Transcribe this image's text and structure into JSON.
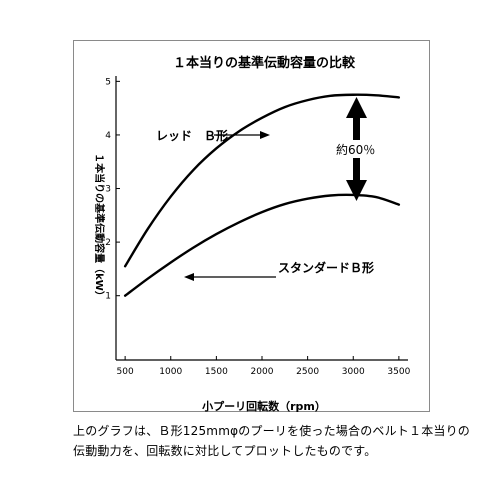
{
  "chart_data": {
    "type": "line",
    "title": "１本当りの基準伝動容量の比較",
    "xlabel": "小プーリ回転数（rpm）",
    "ylabel": "１本当りの基準伝動容量（kW）",
    "xlim": [
      400,
      3600
    ],
    "ylim": [
      -0.2,
      5.1
    ],
    "x_ticks": [
      500,
      1000,
      1500,
      2000,
      2500,
      3000,
      3500
    ],
    "y_ticks": [
      1,
      2,
      3,
      4,
      5
    ],
    "grid": false,
    "series": [
      {
        "name": "レッド　Ｂ形",
        "x": [
          500,
          750,
          1000,
          1250,
          1500,
          1750,
          2000,
          2250,
          2500,
          2750,
          3000,
          3250,
          3500
        ],
        "y": [
          1.55,
          2.25,
          2.85,
          3.35,
          3.75,
          4.07,
          4.32,
          4.52,
          4.65,
          4.73,
          4.75,
          4.74,
          4.7
        ]
      },
      {
        "name": "スタンダードＢ形",
        "x": [
          500,
          750,
          1000,
          1250,
          1500,
          1750,
          2000,
          2250,
          2500,
          2750,
          3000,
          3250,
          3500
        ],
        "y": [
          1.0,
          1.32,
          1.62,
          1.9,
          2.15,
          2.37,
          2.56,
          2.71,
          2.81,
          2.87,
          2.88,
          2.84,
          2.7
        ]
      }
    ],
    "annotation": "約60％"
  },
  "caption": {
    "line1": "上のグラフは、Ｂ形125mmφのプーリを使った場合のベルト１本当りの",
    "line2": "伝動動力を、回転数に対比してプロットしたものです。"
  }
}
